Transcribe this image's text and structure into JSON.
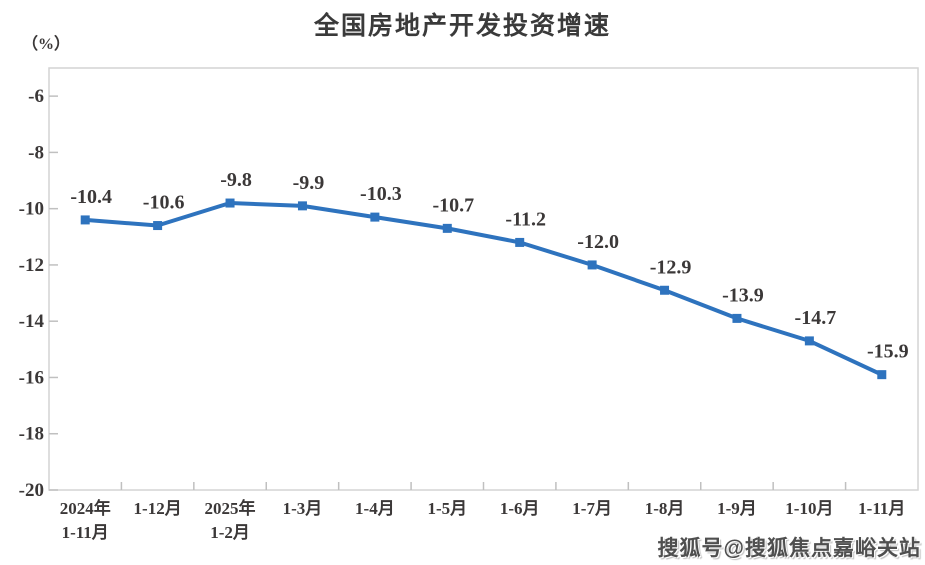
{
  "chart_data": {
    "type": "line",
    "title": "全国房地产开发投资增速",
    "ylabel": "（%）",
    "xlabel": "",
    "categories": [
      "2024年\n1-11月",
      "1-12月",
      "2025年\n1-2月",
      "1-3月",
      "1-4月",
      "1-5月",
      "1-6月",
      "1-7月",
      "1-8月",
      "1-9月",
      "1-10月",
      "1-11月"
    ],
    "values": [
      -10.4,
      -10.6,
      -9.8,
      -9.9,
      -10.3,
      -10.7,
      -11.2,
      -12.0,
      -12.9,
      -13.9,
      -14.7,
      -15.9
    ],
    "data_labels": [
      "-10.4",
      "-10.6",
      "-9.8",
      "-9.9",
      "-10.3",
      "-10.7",
      "-11.2",
      "-12.0",
      "-12.9",
      "-13.9",
      "-14.7",
      "-15.9"
    ],
    "yticks": [
      -6,
      -8,
      -10,
      -12,
      -14,
      -16,
      -18,
      -20
    ],
    "ylim": [
      -20,
      -5
    ],
    "grid": false,
    "legend": false,
    "line_color": "#2E73BE",
    "marker": "square",
    "label_color": "#3B3838",
    "axis_color": "#D4D4D4",
    "tick_color": "#C0C0C0"
  },
  "watermark": {
    "text": "搜狐号@搜狐焦点嘉峪关站"
  }
}
